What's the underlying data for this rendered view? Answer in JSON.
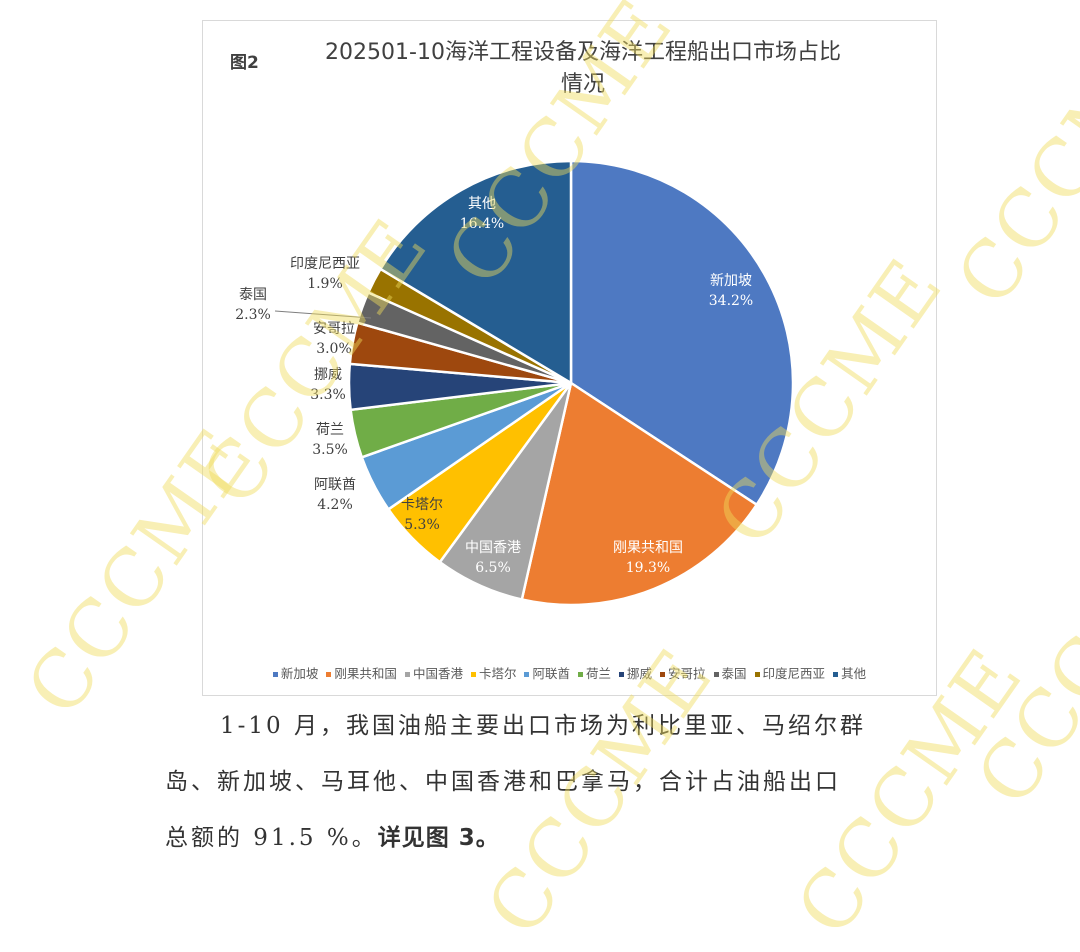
{
  "chart_data": {
    "type": "pie",
    "figure_label": "图2",
    "title": "202501-10海洋工程设备及海洋工程船出口市场占比情况",
    "title_lines": [
      "202501-10海洋工程设备及海洋工程船出口市场占比",
      "情况"
    ],
    "unit": "%",
    "start_angle_deg": 0,
    "direction": "clockwise",
    "legend_position": "bottom",
    "categories": [
      "新加坡",
      "刚果共和国",
      "中国香港",
      "卡塔尔",
      "阿联酋",
      "荷兰",
      "挪威",
      "安哥拉",
      "泰国",
      "印度尼西亚",
      "其他"
    ],
    "values": [
      34.2,
      19.3,
      6.5,
      5.3,
      4.2,
      3.5,
      3.3,
      3.0,
      2.3,
      1.9,
      16.4
    ],
    "colors": [
      "#4E79C2",
      "#ED7D31",
      "#A5A5A5",
      "#FFC000",
      "#5B9BD5",
      "#70AD47",
      "#264478",
      "#9E480E",
      "#636363",
      "#997300",
      "#255E91"
    ],
    "labels": [
      {
        "name": "新加坡",
        "pct": "34.2%"
      },
      {
        "name": "刚果共和国",
        "pct": "19.3%"
      },
      {
        "name": "中国香港",
        "pct": "6.5%"
      },
      {
        "name": "卡塔尔",
        "pct": "5.3%"
      },
      {
        "name": "阿联酋",
        "pct": "4.2%"
      },
      {
        "name": "荷兰",
        "pct": "3.5%"
      },
      {
        "name": "挪威",
        "pct": "3.3%"
      },
      {
        "name": "安哥拉",
        "pct": "3.0%"
      },
      {
        "name": "泰国",
        "pct": "2.3%"
      },
      {
        "name": "印度尼西亚",
        "pct": "1.9%"
      },
      {
        "name": "其他",
        "pct": "16.4%"
      }
    ]
  },
  "text": {
    "para1_line1": "1-10 月，我国油船主要出口市场为利比里亚、马绍尔群",
    "para1_line2": "岛、新加坡、马耳他、中国香港和巴拿马，合计占油船出口",
    "para1_line3_prefix": "总额的 91.5 %。",
    "para1_line3_bold": "详见图 3。"
  },
  "watermark": "CCCME"
}
